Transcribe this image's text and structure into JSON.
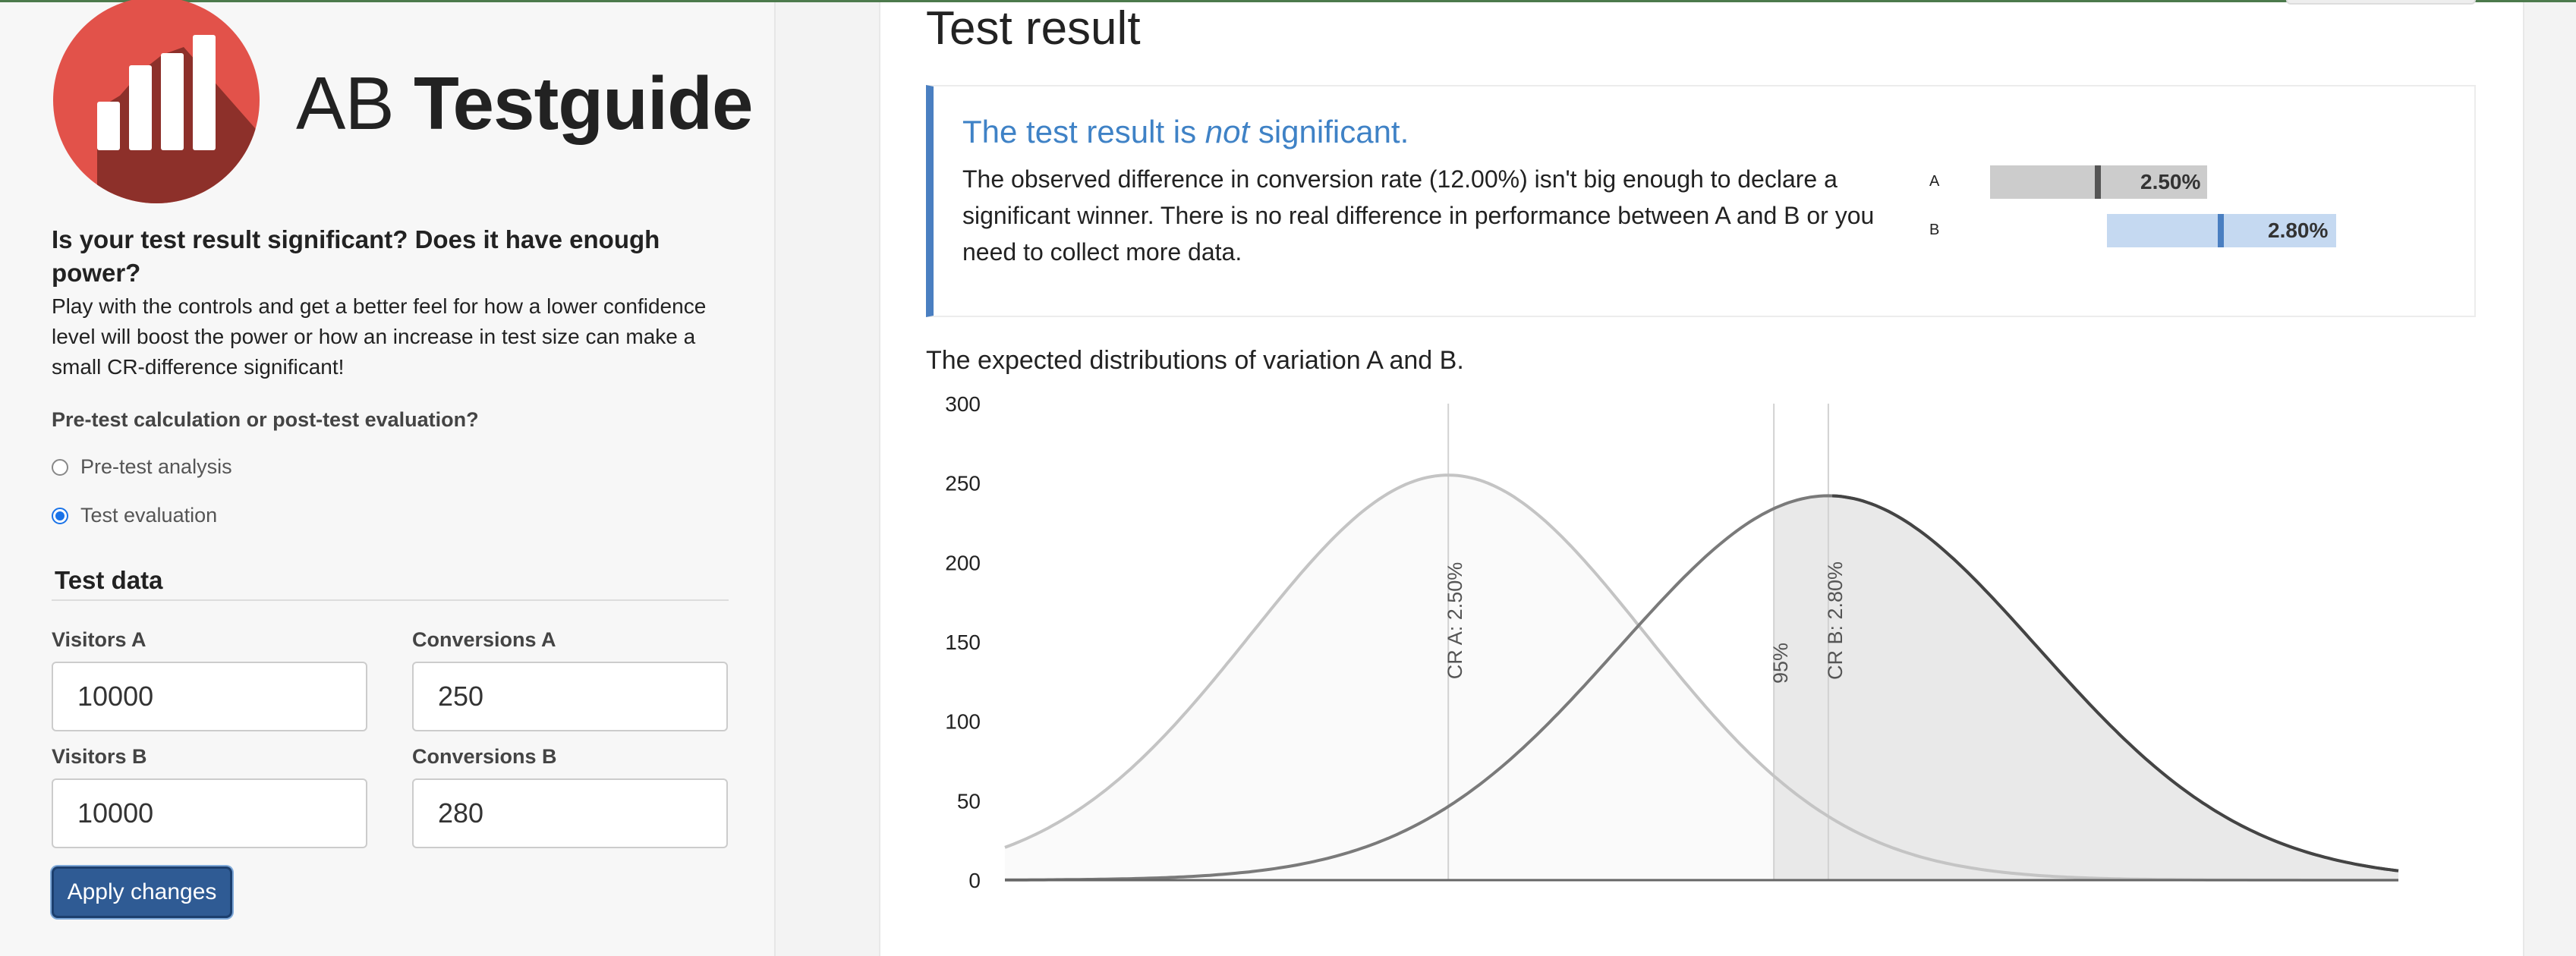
{
  "logo": {
    "prefix": "AB",
    "bold": "Testguide"
  },
  "intro": {
    "question": "Is your test result significant? Does it have enough power?",
    "description": "Play with the controls and get a better feel for how a lower confidence level will boost the power or how an increase in test size can make a small CR-difference significant!"
  },
  "mode": {
    "question": "Pre-test calculation or post-test evaluation?",
    "options": [
      {
        "label": "Pre-test analysis",
        "selected": false
      },
      {
        "label": "Test evaluation",
        "selected": true
      }
    ]
  },
  "test_data": {
    "title": "Test data",
    "visitors_a_label": "Visitors A",
    "visitors_a": "10000",
    "conversions_a_label": "Conversions A",
    "conversions_a": "250",
    "visitors_b_label": "Visitors B",
    "visitors_b": "10000",
    "conversions_b_label": "Conversions B",
    "conversions_b": "280",
    "apply_label": "Apply changes"
  },
  "result": {
    "page_title": "Test result",
    "headline_pre": "The test result is ",
    "headline_em": "not",
    "headline_post": " significant.",
    "text": "The observed difference in conversion rate (12.00%) isn't big enough to declare a significant winner. There is no real difference in performance between A and B or you need to collect more data.",
    "bars": [
      {
        "label": "A",
        "value_text": "2.50%"
      },
      {
        "label": "B",
        "value_text": "2.80%"
      }
    ]
  },
  "colors": {
    "accent": "#4a7fc1",
    "bar_a": "#cccccc",
    "bar_b": "#c5d9f1",
    "marker_a": "#555555",
    "marker_b": "#4a7fc1",
    "button": "#2f5b94"
  },
  "chart_data": {
    "type": "area",
    "title": "The expected distributions of variation A and B.",
    "ylim": [
      0,
      300
    ],
    "y_ticks": [
      0,
      50,
      100,
      150,
      200,
      250,
      300
    ],
    "xlim": [
      0.0215,
      0.0325
    ],
    "series": [
      {
        "name": "A",
        "cr": 0.025,
        "sd": 0.00156,
        "peak": 255
      },
      {
        "name": "B",
        "cr": 0.028,
        "sd": 0.00165,
        "peak": 242
      }
    ],
    "vlines": [
      {
        "label": "CR A: 2.50%",
        "x": 0.025
      },
      {
        "label": "95%",
        "x": 0.02757
      },
      {
        "label": "CR B: 2.80%",
        "x": 0.028
      }
    ],
    "grid": false
  }
}
